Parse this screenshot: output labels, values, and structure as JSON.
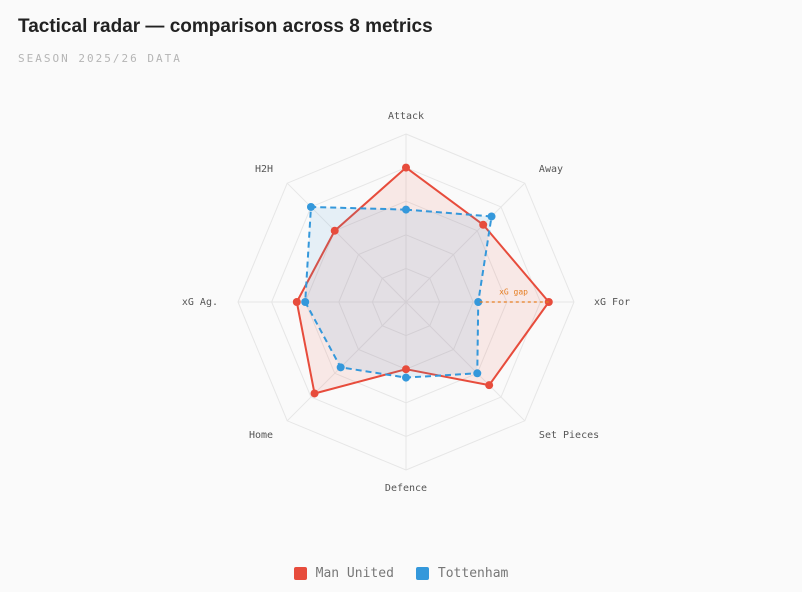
{
  "chart_data": {
    "type": "radar",
    "title": "Tactical radar — comparison across 8 metrics",
    "subtitle": "SEASON 2025/26 DATA",
    "categories": [
      "Attack",
      "Away",
      "xG For",
      "Set Pieces",
      "Defence",
      "Home",
      "xG Ag.",
      "H2H"
    ],
    "rlim": [
      0,
      100
    ],
    "rticks": [
      20,
      40,
      60,
      80,
      100
    ],
    "grid": true,
    "legend": "bottom",
    "series": [
      {
        "name": "Man United",
        "color": "#e74c3c",
        "dashed": false,
        "values": [
          80,
          65,
          85,
          70,
          40,
          77,
          65,
          60
        ]
      },
      {
        "name": "Tottenham",
        "color": "#3498db",
        "dashed": true,
        "values": [
          55,
          72,
          43,
          60,
          45,
          55,
          60,
          80
        ]
      }
    ],
    "annotation": {
      "text": "xG gap",
      "category_index": 2,
      "color": "#e67e22"
    }
  }
}
